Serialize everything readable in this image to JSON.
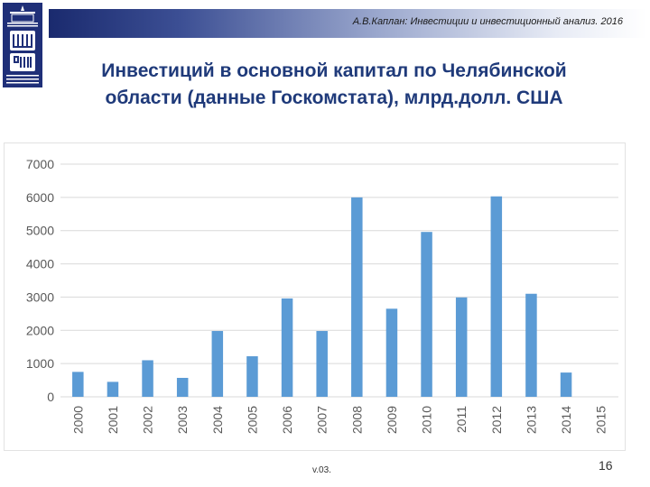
{
  "header": {
    "subtitle": "А.В.Каплан: Инвестиции и инвестиционный анализ. 2016"
  },
  "slide": {
    "title_line1": "Инвестиций в основной капитал по Челябинской",
    "title_line2": "области (данные Госкомстата), млрд.долл. США"
  },
  "footer": {
    "version": "v.03.",
    "page_number": "16"
  },
  "colors": {
    "bar": "#5b9bd5",
    "title": "#1f3a7a",
    "grid": "#d9d9d9",
    "tick_text": "#595959"
  },
  "chart_data": {
    "type": "bar",
    "title": "",
    "xlabel": "",
    "ylabel": "",
    "categories": [
      "2000",
      "2001",
      "2002",
      "2003",
      "2004",
      "2005",
      "2006",
      "2007",
      "2008",
      "2009",
      "2010",
      "2011",
      "2012",
      "2013",
      "2014",
      "2015"
    ],
    "values": [
      750,
      450,
      1100,
      570,
      1980,
      1220,
      2960,
      1980,
      6000,
      2650,
      4960,
      2990,
      6030,
      3100,
      730,
      0
    ],
    "ylim": [
      0,
      7000
    ],
    "yticks": [
      0,
      1000,
      2000,
      3000,
      4000,
      5000,
      6000,
      7000
    ],
    "grid": true,
    "legend": "none"
  }
}
